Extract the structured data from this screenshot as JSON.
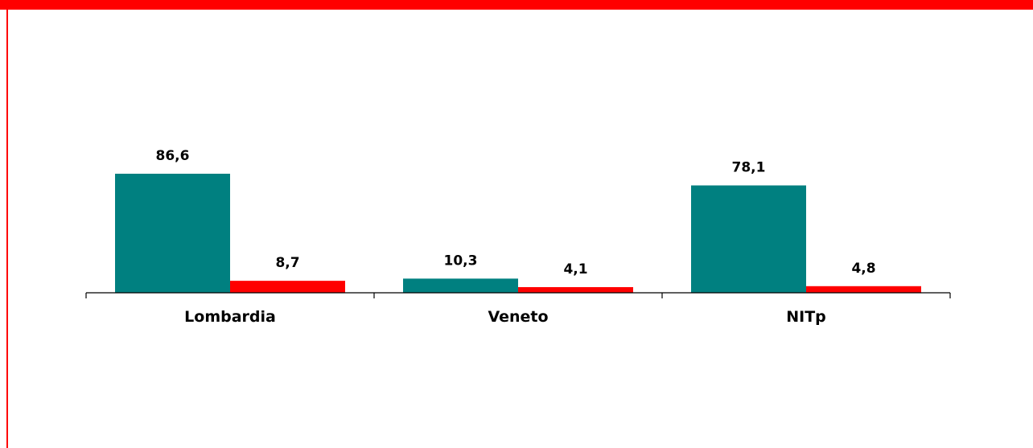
{
  "colors": {
    "frame": "#ff0000",
    "series_a": "#008080",
    "series_b": "#ff0000"
  },
  "chart_data": {
    "type": "bar",
    "categories": [
      "Lombardia",
      "Veneto",
      "NITp"
    ],
    "series": [
      {
        "color": "#008080",
        "values": [
          86.6,
          10.3,
          78.1
        ],
        "labels": [
          "86,6",
          "10,3",
          "78,1"
        ]
      },
      {
        "color": "#ff0000",
        "values": [
          8.7,
          4.1,
          4.8
        ],
        "labels": [
          "8,7",
          "4,1",
          "4,8"
        ]
      }
    ],
    "ylim": [
      0,
      86.6
    ],
    "grid": false,
    "legend": "none"
  }
}
